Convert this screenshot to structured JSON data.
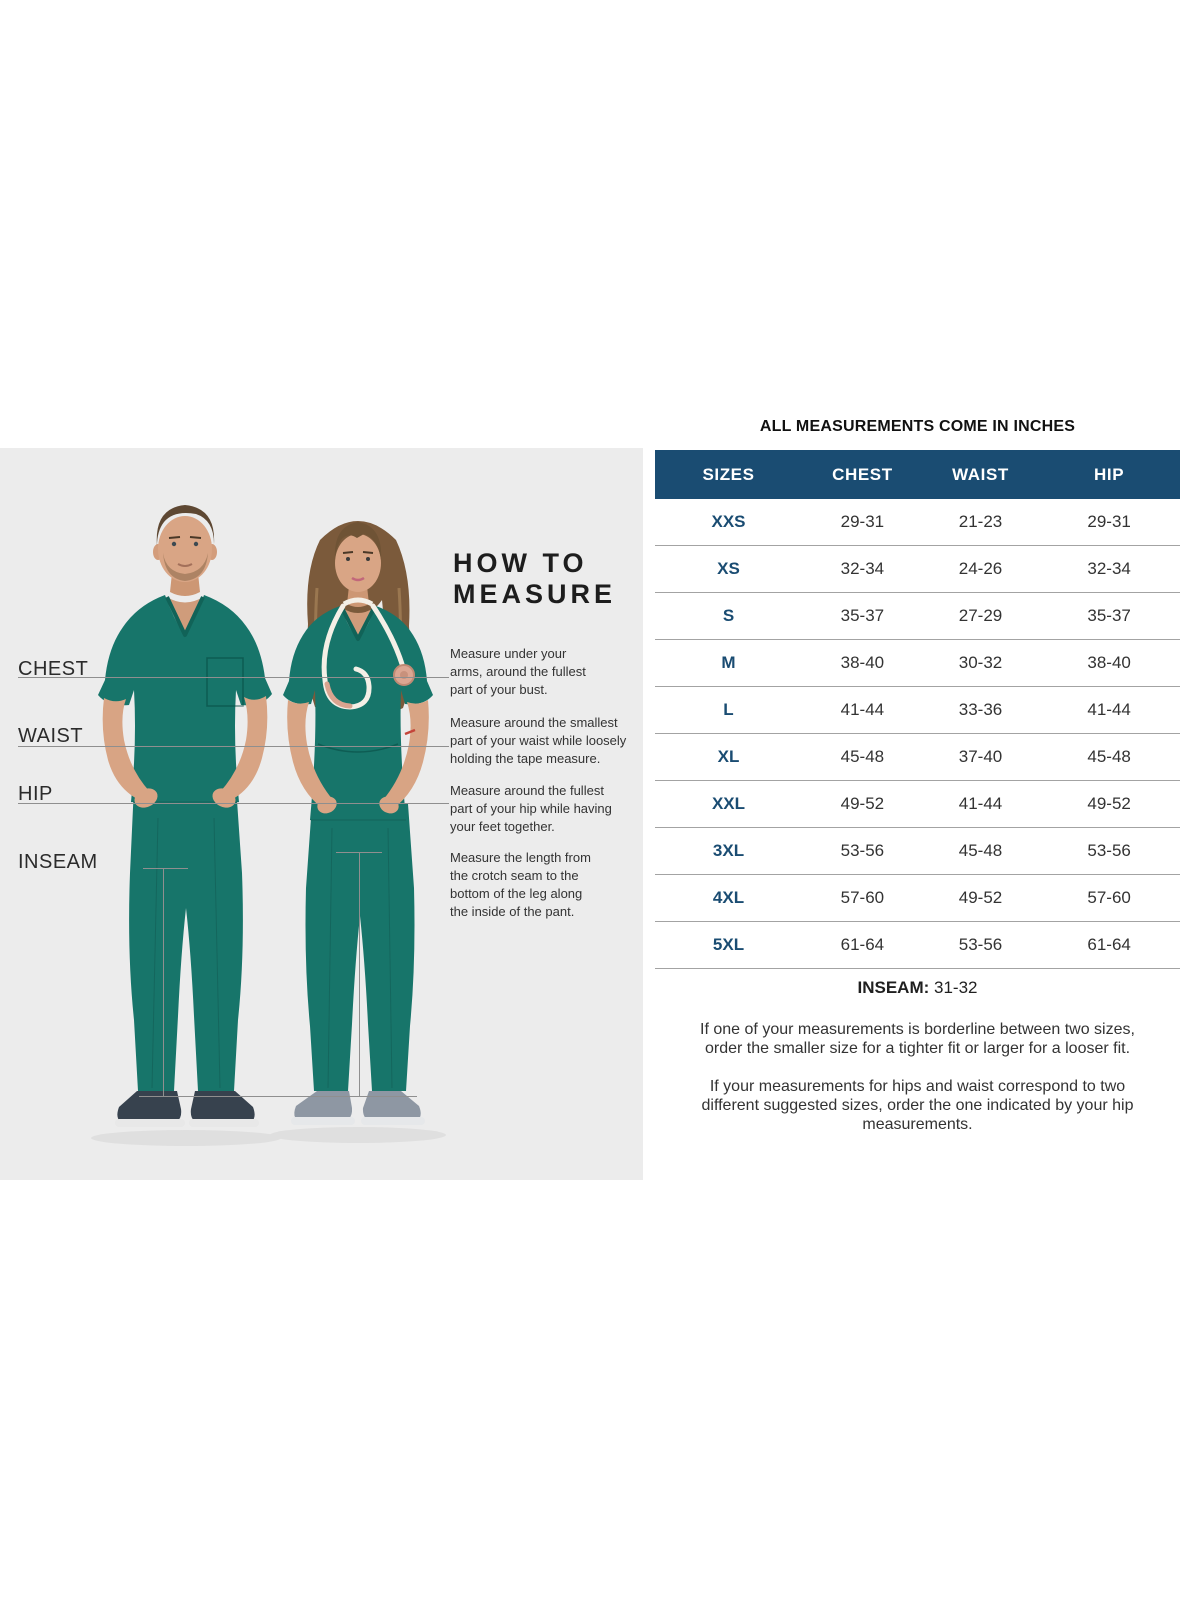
{
  "colors": {
    "accent_navy": "#1a4c72",
    "panel_bg": "#ececec",
    "scrub_teal": "#17756a",
    "scrub_teal_dark": "#116358",
    "divider": "#a3a3a3",
    "value_text": "#333333",
    "heading_text": "#1d1d1d",
    "line_gray": "#8f8f8f"
  },
  "measure_panel": {
    "heading": "HOW TO\nMEASURE",
    "labels": [
      {
        "id": "chest",
        "label": "CHEST"
      },
      {
        "id": "waist",
        "label": "WAIST"
      },
      {
        "id": "hip",
        "label": "HIP"
      },
      {
        "id": "inseam",
        "label": "INSEAM"
      }
    ],
    "instructions": [
      "Measure under your\narms, around the fullest\npart of your bust.",
      "Measure around the smallest\npart of your waist while loosely\nholding the tape measure.",
      "Measure around the fullest\npart of your hip while having\nyour feet together.",
      "Measure the length from\nthe crotch seam to the\nbottom of the leg along\nthe inside of the pant."
    ]
  },
  "size_chart": {
    "title": "ALL MEASUREMENTS COME IN INCHES",
    "columns": [
      "SIZES",
      "CHEST",
      "WAIST",
      "HIP"
    ],
    "rows": [
      {
        "size": "XXS",
        "chest": "29-31",
        "waist": "21-23",
        "hip": "29-31"
      },
      {
        "size": "XS",
        "chest": "32-34",
        "waist": "24-26",
        "hip": "32-34"
      },
      {
        "size": "S",
        "chest": "35-37",
        "waist": "27-29",
        "hip": "35-37"
      },
      {
        "size": "M",
        "chest": "38-40",
        "waist": "30-32",
        "hip": "38-40"
      },
      {
        "size": "L",
        "chest": "41-44",
        "waist": "33-36",
        "hip": "41-44"
      },
      {
        "size": "XL",
        "chest": "45-48",
        "waist": "37-40",
        "hip": "45-48"
      },
      {
        "size": "XXL",
        "chest": "49-52",
        "waist": "41-44",
        "hip": "49-52"
      },
      {
        "size": "3XL",
        "chest": "53-56",
        "waist": "45-48",
        "hip": "53-56"
      },
      {
        "size": "4XL",
        "chest": "57-60",
        "waist": "49-52",
        "hip": "57-60"
      },
      {
        "size": "5XL",
        "chest": "61-64",
        "waist": "53-56",
        "hip": "61-64"
      }
    ],
    "inseam_label": "INSEAM:",
    "inseam_value": "31-32",
    "notes": [
      "If one of your measurements is borderline between two sizes,\norder the smaller size for a tighter fit or larger for a looser fit.",
      "If your measurements for hips and waist correspond to two\ndifferent suggested sizes, order the one indicated by your hip\nmeasurements."
    ]
  }
}
